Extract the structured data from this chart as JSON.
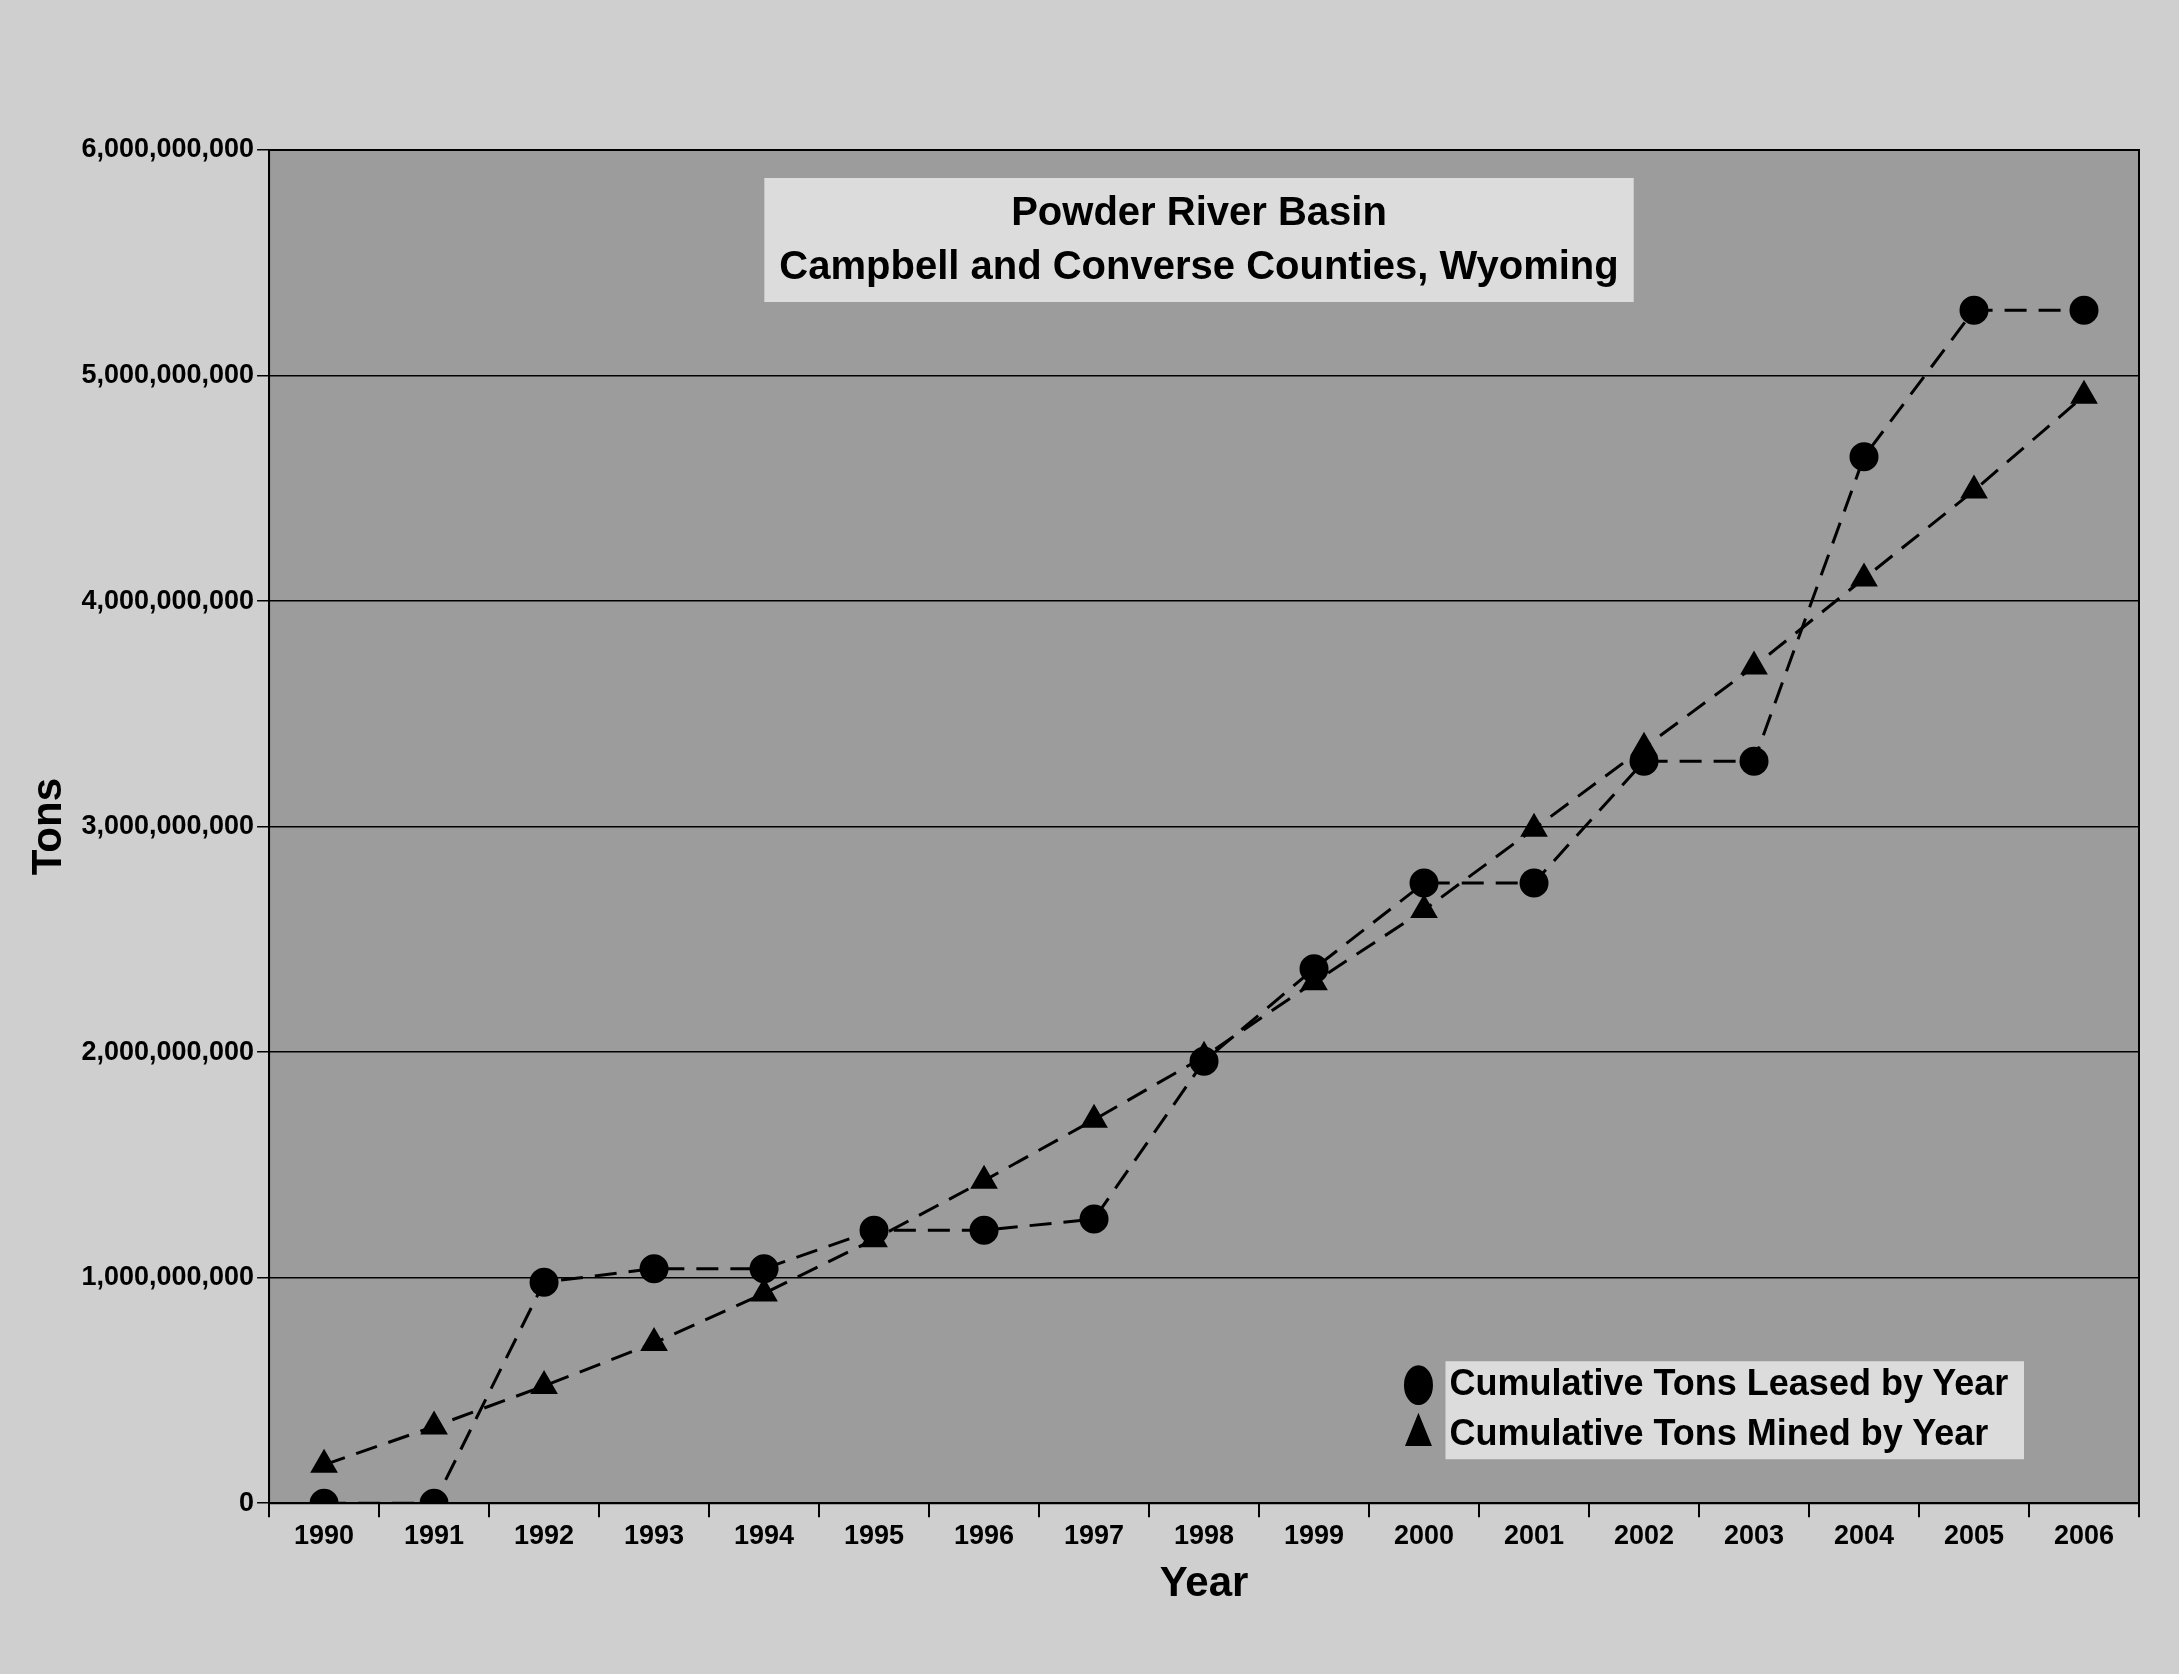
{
  "chart_data": {
    "type": "line",
    "title": "Powder River Basin\nCampbell and Converse Counties, Wyoming",
    "xlabel": "Year",
    "ylabel": "Tons",
    "categories": [
      "1990",
      "1991",
      "1992",
      "1993",
      "1994",
      "1995",
      "1996",
      "1997",
      "1998",
      "1999",
      "2000",
      "2001",
      "2002",
      "2003",
      "2004",
      "2005",
      "2006"
    ],
    "series": [
      {
        "name": "Cumulative Tons Leased by Year",
        "color": "#000000",
        "marker": "circle",
        "line_style": "dashed",
        "values": [
          0,
          0,
          980000000,
          1040000000,
          1040000000,
          1210000000,
          1210000000,
          1260000000,
          1960000000,
          2370000000,
          2750000000,
          2750000000,
          3290000000,
          3290000000,
          4640000000,
          5290000000,
          5290000000
        ]
      },
      {
        "name": "Cumulative Tons Mined by Year",
        "color": "#000000",
        "marker": "triangle",
        "line_style": "dashed",
        "values": [
          170000000,
          340000000,
          520000000,
          710000000,
          930000000,
          1170000000,
          1430000000,
          1700000000,
          1980000000,
          2310000000,
          2630000000,
          2990000000,
          3350000000,
          3710000000,
          4100000000,
          4490000000,
          4910000000
        ]
      }
    ],
    "ylim": [
      0,
      6000000000
    ],
    "yticks": [
      0,
      {
        "value": 1000000000,
        "label": "1,000,000,000"
      },
      {
        "value": 2000000000,
        "label": "2,000,000,000"
      },
      {
        "value": 3000000000,
        "label": "3,000,000,000"
      },
      {
        "value": 4000000000,
        "label": "4,000,000,000"
      },
      {
        "value": 5000000000,
        "label": "5,000,000,000"
      },
      {
        "value": 6000000000,
        "label": "6,000,000,000"
      }
    ],
    "grid": "y",
    "legend": "bottom right"
  }
}
